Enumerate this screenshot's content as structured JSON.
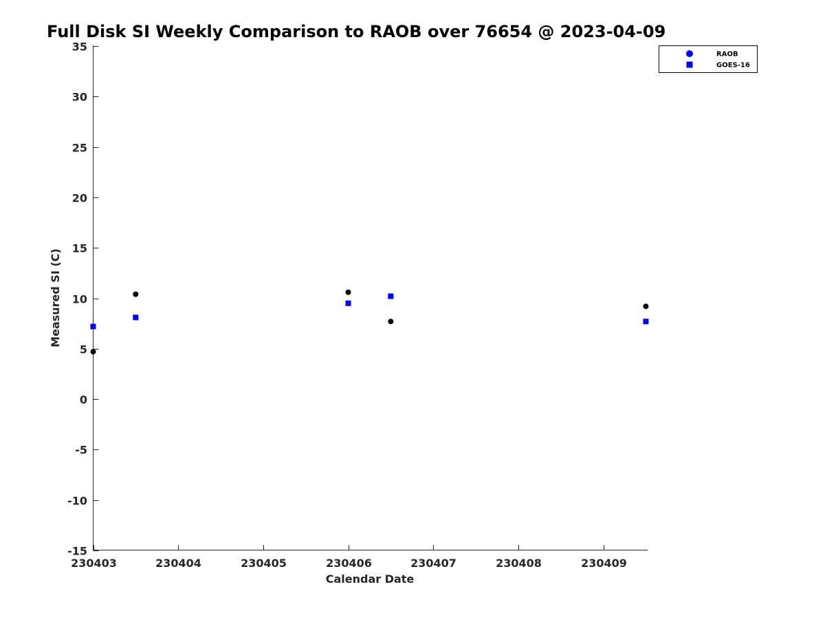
{
  "chart_data": {
    "type": "scatter",
    "title": "Full Disk SI Weekly Comparison to RAOB over 76654 @ 2023-04-09",
    "xlabel": "Calendar Date",
    "ylabel": "Measured SI (C)",
    "x_ticks": [
      "230403",
      "230404",
      "230405",
      "230406",
      "230407",
      "230408",
      "230409"
    ],
    "y_ticks": [
      35,
      30,
      25,
      20,
      15,
      10,
      5,
      0,
      -5,
      -10,
      -15
    ],
    "ylim": [
      -15,
      35
    ],
    "xlim": [
      "2023-04-03 00:00",
      "2023-04-09 12:30"
    ],
    "grid": false,
    "legend_position": "top-right",
    "series": [
      {
        "name": "RAOB",
        "marker": "circle",
        "legend_color": "#0000ff",
        "point_color": "#000000",
        "points": [
          {
            "x": "2023-04-03 00:00",
            "y": 4.7
          },
          {
            "x": "2023-04-03 12:00",
            "y": 10.4
          },
          {
            "x": "2023-04-06 00:00",
            "y": 10.6
          },
          {
            "x": "2023-04-06 12:00",
            "y": 7.7
          },
          {
            "x": "2023-04-09 12:00",
            "y": 9.2
          }
        ]
      },
      {
        "name": "GOES-16",
        "marker": "square",
        "legend_color": "#0000ff",
        "point_color": "#0000ff",
        "points": [
          {
            "x": "2023-04-03 00:00",
            "y": 7.2
          },
          {
            "x": "2023-04-03 12:00",
            "y": 8.1
          },
          {
            "x": "2023-04-06 00:00",
            "y": 9.5
          },
          {
            "x": "2023-04-06 12:00",
            "y": 10.2
          },
          {
            "x": "2023-04-09 12:00",
            "y": 7.7
          }
        ]
      }
    ]
  }
}
